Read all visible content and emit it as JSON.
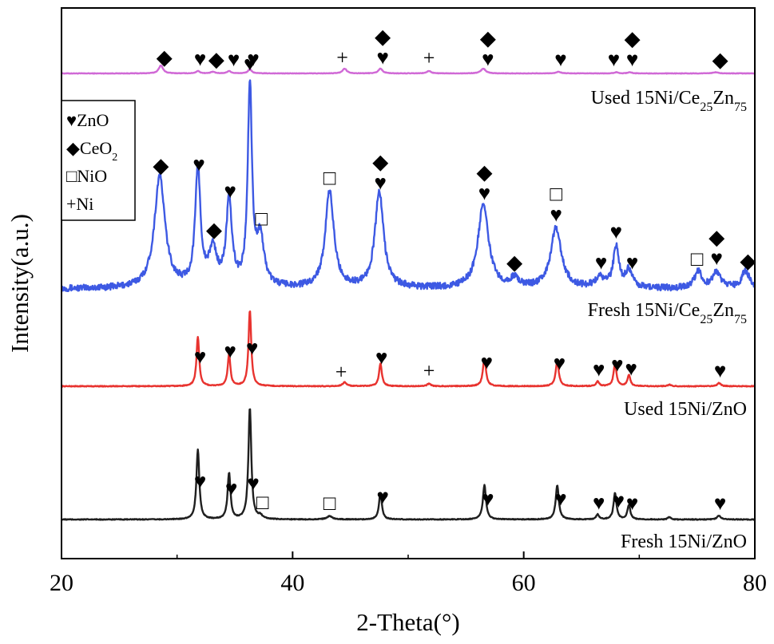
{
  "chart_data": {
    "type": "line",
    "xlabel": "2-Theta(°)",
    "ylabel": "Intensity(a.u.)",
    "xlim": [
      20,
      80
    ],
    "x_ticks": [
      20,
      40,
      60,
      80
    ],
    "y_ticks_shown": false,
    "legend": {
      "placement": "top-left",
      "entries": [
        {
          "symbol": "♥",
          "label": "ZnO"
        },
        {
          "symbol": "◆",
          "label": "CeO",
          "sub": "2"
        },
        {
          "symbol": "□",
          "label": "NiO"
        },
        {
          "symbol": "+",
          "label": "Ni"
        }
      ]
    },
    "series": [
      {
        "key": "used_ce",
        "label": {
          "parts": [
            [
              "Used 15Ni/Ce",
              ""
            ],
            [
              "25",
              "sub"
            ],
            [
              "Zn",
              ""
            ],
            [
              "75",
              "sub"
            ]
          ]
        },
        "color": "#d069d6",
        "baseline": 0.0,
        "noise": 0.3,
        "peaks": [
          [
            28.6,
            10,
            0.22
          ],
          [
            31.8,
            3,
            0.2
          ],
          [
            33.1,
            2,
            0.2
          ],
          [
            34.5,
            3,
            0.2
          ],
          [
            36.3,
            5,
            0.2
          ],
          [
            44.5,
            6,
            0.22
          ],
          [
            47.6,
            6,
            0.22
          ],
          [
            51.8,
            3,
            0.22
          ],
          [
            56.5,
            6,
            0.25
          ],
          [
            63.0,
            2,
            0.25
          ],
          [
            68.0,
            1.5,
            0.2
          ],
          [
            69.2,
            1.5,
            0.2
          ],
          [
            76.6,
            1.5,
            0.25
          ]
        ],
        "markers": [
          {
            "x": 28.9,
            "symbols": [
              "◆"
            ]
          },
          {
            "x": 32.0,
            "symbols": [
              "♥"
            ]
          },
          {
            "x": 33.4,
            "symbols": [
              "◆"
            ]
          },
          {
            "x": 34.9,
            "symbols": [
              "♥"
            ]
          },
          {
            "x": 36.6,
            "symbols": [
              "♥"
            ]
          },
          {
            "x": 44.3,
            "symbols": [
              "+"
            ]
          },
          {
            "x": 47.8,
            "symbols": [
              "◆",
              "♥"
            ]
          },
          {
            "x": 51.8,
            "symbols": [
              "+"
            ]
          },
          {
            "x": 56.9,
            "symbols": [
              "◆",
              "♥"
            ]
          },
          {
            "x": 63.2,
            "symbols": [
              "♥"
            ]
          },
          {
            "x": 67.8,
            "symbols": [
              "♥"
            ]
          },
          {
            "x": 69.4,
            "symbols": [
              "◆",
              "♥"
            ]
          },
          {
            "x": 77.0,
            "symbols": [
              "◆"
            ]
          }
        ]
      },
      {
        "key": "fresh_ce",
        "label": {
          "parts": [
            [
              "Fresh 15Ni/Ce",
              ""
            ],
            [
              "25",
              "sub"
            ],
            [
              "Zn",
              ""
            ],
            [
              "75",
              "sub"
            ]
          ]
        },
        "color": "#3d59e3",
        "baseline": 0.0,
        "noise": 4.0,
        "peaks": [
          [
            28.5,
            140,
            0.55
          ],
          [
            31.8,
            145,
            0.28
          ],
          [
            33.1,
            45,
            0.4
          ],
          [
            34.5,
            105,
            0.3
          ],
          [
            36.3,
            250,
            0.22
          ],
          [
            37.2,
            60,
            0.4
          ],
          [
            43.2,
            120,
            0.45
          ],
          [
            47.5,
            120,
            0.45
          ],
          [
            56.5,
            105,
            0.55
          ],
          [
            59.2,
            10,
            0.5
          ],
          [
            62.8,
            75,
            0.55
          ],
          [
            66.6,
            12,
            0.5
          ],
          [
            68.0,
            50,
            0.3
          ],
          [
            69.1,
            22,
            0.35
          ],
          [
            75.1,
            20,
            0.4
          ],
          [
            76.7,
            20,
            0.45
          ],
          [
            79.2,
            22,
            0.4
          ]
        ],
        "markers": [
          {
            "x": 28.6,
            "symbols": [
              "◆"
            ]
          },
          {
            "x": 31.9,
            "symbols": [
              "♥"
            ]
          },
          {
            "x": 33.2,
            "symbols": [
              "◆"
            ]
          },
          {
            "x": 34.6,
            "symbols": [
              "♥"
            ]
          },
          {
            "x": 36.3,
            "symbols": [
              "♥"
            ]
          },
          {
            "x": 37.3,
            "symbols": [
              "□"
            ]
          },
          {
            "x": 43.2,
            "symbols": [
              "□"
            ]
          },
          {
            "x": 47.6,
            "symbols": [
              "◆",
              "♥"
            ]
          },
          {
            "x": 56.6,
            "symbols": [
              "◆",
              "♥"
            ]
          },
          {
            "x": 59.2,
            "symbols": [
              "◆"
            ]
          },
          {
            "x": 62.8,
            "symbols": [
              "□",
              "♥"
            ]
          },
          {
            "x": 66.7,
            "symbols": [
              "♥"
            ]
          },
          {
            "x": 68.0,
            "symbols": [
              "♥"
            ]
          },
          {
            "x": 69.4,
            "symbols": [
              "♥"
            ]
          },
          {
            "x": 75.0,
            "symbols": [
              "□"
            ]
          },
          {
            "x": 76.7,
            "symbols": [
              "◆",
              "♥"
            ]
          },
          {
            "x": 79.4,
            "symbols": [
              "◆"
            ]
          }
        ]
      },
      {
        "key": "used_zno",
        "label": {
          "parts": [
            [
              "Used 15Ni/ZnO",
              ""
            ]
          ]
        },
        "color": "#e8332f",
        "baseline": 0.0,
        "noise": 0.5,
        "peaks": [
          [
            31.8,
            62,
            0.14
          ],
          [
            34.5,
            40,
            0.14
          ],
          [
            36.3,
            95,
            0.14
          ],
          [
            44.5,
            5,
            0.2
          ],
          [
            47.6,
            28,
            0.15
          ],
          [
            51.8,
            3,
            0.2
          ],
          [
            56.6,
            35,
            0.16
          ],
          [
            62.9,
            32,
            0.16
          ],
          [
            66.4,
            6,
            0.15
          ],
          [
            67.9,
            28,
            0.15
          ],
          [
            69.1,
            14,
            0.15
          ],
          [
            72.6,
            2,
            0.15
          ],
          [
            76.9,
            4,
            0.18
          ]
        ],
        "markers": [
          {
            "x": 32.0,
            "symbols": [
              "♥"
            ]
          },
          {
            "x": 34.6,
            "symbols": [
              "♥"
            ]
          },
          {
            "x": 36.5,
            "symbols": [
              "♥"
            ]
          },
          {
            "x": 44.2,
            "symbols": [
              "+"
            ]
          },
          {
            "x": 47.7,
            "symbols": [
              "♥"
            ]
          },
          {
            "x": 51.8,
            "symbols": [
              "+"
            ]
          },
          {
            "x": 56.8,
            "symbols": [
              "♥"
            ]
          },
          {
            "x": 63.1,
            "symbols": [
              "♥"
            ]
          },
          {
            "x": 66.5,
            "symbols": [
              "♥"
            ]
          },
          {
            "x": 68.1,
            "symbols": [
              "♥"
            ]
          },
          {
            "x": 69.3,
            "symbols": [
              "♥"
            ]
          },
          {
            "x": 77.0,
            "symbols": [
              "♥"
            ]
          }
        ]
      },
      {
        "key": "fresh_zno",
        "label": {
          "parts": [
            [
              "Fresh 15Ni/ZnO",
              ""
            ]
          ]
        },
        "color": "#1f1f1f",
        "baseline": 0.0,
        "noise": 0.5,
        "peaks": [
          [
            31.8,
            87,
            0.15
          ],
          [
            34.5,
            58,
            0.15
          ],
          [
            36.3,
            140,
            0.15
          ],
          [
            37.2,
            4,
            0.2
          ],
          [
            43.2,
            4,
            0.3
          ],
          [
            47.6,
            33,
            0.15
          ],
          [
            56.6,
            43,
            0.16
          ],
          [
            62.9,
            43,
            0.16
          ],
          [
            66.4,
            6,
            0.15
          ],
          [
            67.9,
            33,
            0.15
          ],
          [
            69.1,
            18,
            0.15
          ],
          [
            72.6,
            3,
            0.15
          ],
          [
            76.9,
            5,
            0.18
          ]
        ],
        "markers": [
          {
            "x": 32.0,
            "symbols": [
              "♥"
            ]
          },
          {
            "x": 34.7,
            "symbols": [
              "♥"
            ]
          },
          {
            "x": 36.6,
            "symbols": [
              "♥"
            ]
          },
          {
            "x": 37.4,
            "symbols": [
              "□"
            ]
          },
          {
            "x": 43.2,
            "symbols": [
              "□"
            ]
          },
          {
            "x": 47.8,
            "symbols": [
              "♥"
            ]
          },
          {
            "x": 56.9,
            "symbols": [
              "♥"
            ]
          },
          {
            "x": 63.2,
            "symbols": [
              "♥"
            ]
          },
          {
            "x": 66.5,
            "symbols": [
              "♥"
            ]
          },
          {
            "x": 68.2,
            "symbols": [
              "♥"
            ]
          },
          {
            "x": 69.4,
            "symbols": [
              "♥"
            ]
          },
          {
            "x": 77.0,
            "symbols": [
              "♥"
            ]
          }
        ]
      }
    ]
  }
}
